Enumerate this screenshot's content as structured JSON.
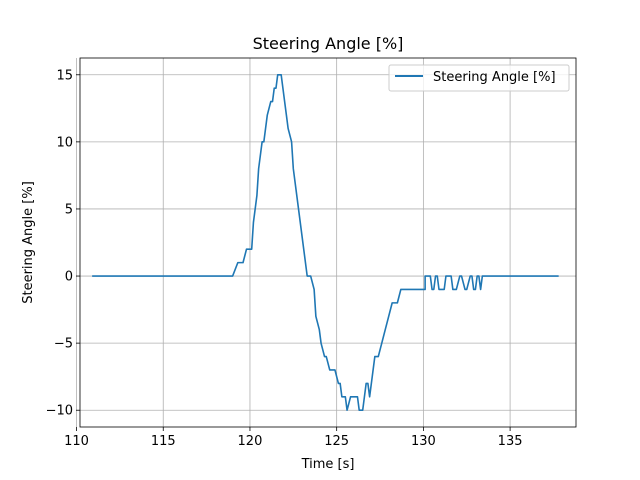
{
  "chart_data": {
    "type": "line",
    "title": "Steering Angle [%]",
    "xlabel": "Time [s]",
    "ylabel": "Steering Angle [%]",
    "xlim": [
      110.2,
      138.8
    ],
    "ylim": [
      -11.25,
      16.25
    ],
    "xticks": [
      110,
      115,
      120,
      125,
      130,
      135
    ],
    "xtick_labels": [
      "110",
      "115",
      "120",
      "125",
      "130",
      "135"
    ],
    "yticks": [
      -10,
      -5,
      0,
      5,
      10,
      15
    ],
    "ytick_labels": [
      "−10",
      "−5",
      "0",
      "5",
      "10",
      "15"
    ],
    "grid": true,
    "legend_position": "top-right",
    "series": [
      {
        "name": "Steering Angle [%]",
        "color": "#1f77b4",
        "x": [
          110.9,
          119.0,
          119.0,
          119.3,
          119.3,
          119.6,
          119.6,
          119.8,
          119.8,
          120.1,
          120.2,
          120.4,
          120.5,
          120.7,
          120.8,
          121.0,
          121.0,
          121.2,
          121.3,
          121.4,
          121.5,
          121.6,
          121.7,
          121.8,
          121.9,
          122.0,
          122.1,
          122.2,
          122.4,
          122.5,
          122.7,
          122.9,
          123.1,
          123.3,
          123.5,
          123.7,
          123.8,
          124.0,
          124.1,
          124.3,
          124.4,
          124.6,
          124.8,
          124.9,
          125.1,
          125.2,
          125.3,
          125.5,
          125.6,
          125.8,
          126.2,
          126.3,
          126.5,
          126.6,
          126.7,
          126.8,
          126.9,
          127.0,
          127.1,
          127.2,
          127.4,
          127.6,
          127.8,
          128.0,
          128.2,
          128.5,
          128.7,
          129.1,
          129.4,
          130.1,
          130.1,
          130.3,
          130.4,
          130.5,
          130.6,
          130.7,
          130.8,
          130.9,
          131.0,
          131.2,
          131.3,
          131.5,
          131.6,
          131.7,
          131.9,
          132.1,
          132.2,
          132.4,
          132.5,
          132.7,
          132.8,
          132.9,
          133.0,
          133.1,
          133.2,
          133.3,
          133.4,
          133.5,
          133.6,
          137.8
        ],
        "values": [
          0,
          0,
          0,
          1,
          1,
          1,
          1,
          2,
          2,
          2,
          4,
          6,
          8,
          10,
          10,
          12,
          12,
          13,
          13,
          14,
          14,
          15,
          15,
          15,
          14,
          13,
          12,
          11,
          10,
          8,
          6,
          4,
          2,
          0,
          0,
          -1,
          -3,
          -4,
          -5,
          -6,
          -6,
          -7,
          -7,
          -7,
          -8,
          -8,
          -9,
          -9,
          -10,
          -9,
          -9,
          -10,
          -10,
          -9,
          -8,
          -8,
          -9,
          -8,
          -7,
          -6,
          -6,
          -5,
          -4,
          -3,
          -2,
          -2,
          -1,
          -1,
          -1,
          -1,
          0,
          0,
          0,
          -1,
          -1,
          0,
          0,
          -1,
          -1,
          -1,
          0,
          0,
          0,
          -1,
          -1,
          0,
          0,
          -1,
          -1,
          0,
          0,
          -1,
          -1,
          0,
          0,
          -1,
          0,
          0,
          0,
          0
        ]
      }
    ]
  }
}
